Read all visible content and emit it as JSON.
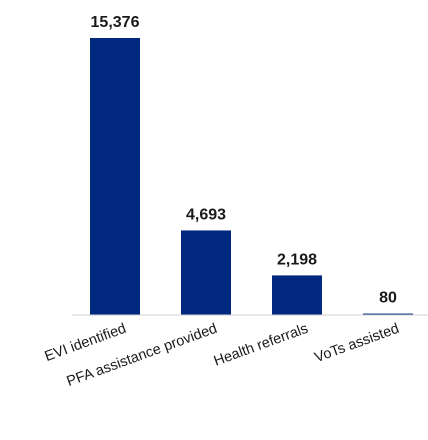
{
  "chart_data": {
    "type": "bar",
    "categories": [
      "EVI identified",
      "PFA assistance provided",
      "Health referrals",
      "VoTs assisted"
    ],
    "values": [
      15376,
      4693,
      2198,
      80
    ],
    "value_labels": [
      "15,376",
      "4,693",
      "2,198",
      "80"
    ],
    "title": "",
    "xlabel": "",
    "ylabel": "",
    "ylim": [
      0,
      15376
    ],
    "bar_color": "#00287F",
    "axis_color": "#d0d0d0",
    "grid": false,
    "legend": "none",
    "y_axis_visible": false
  }
}
